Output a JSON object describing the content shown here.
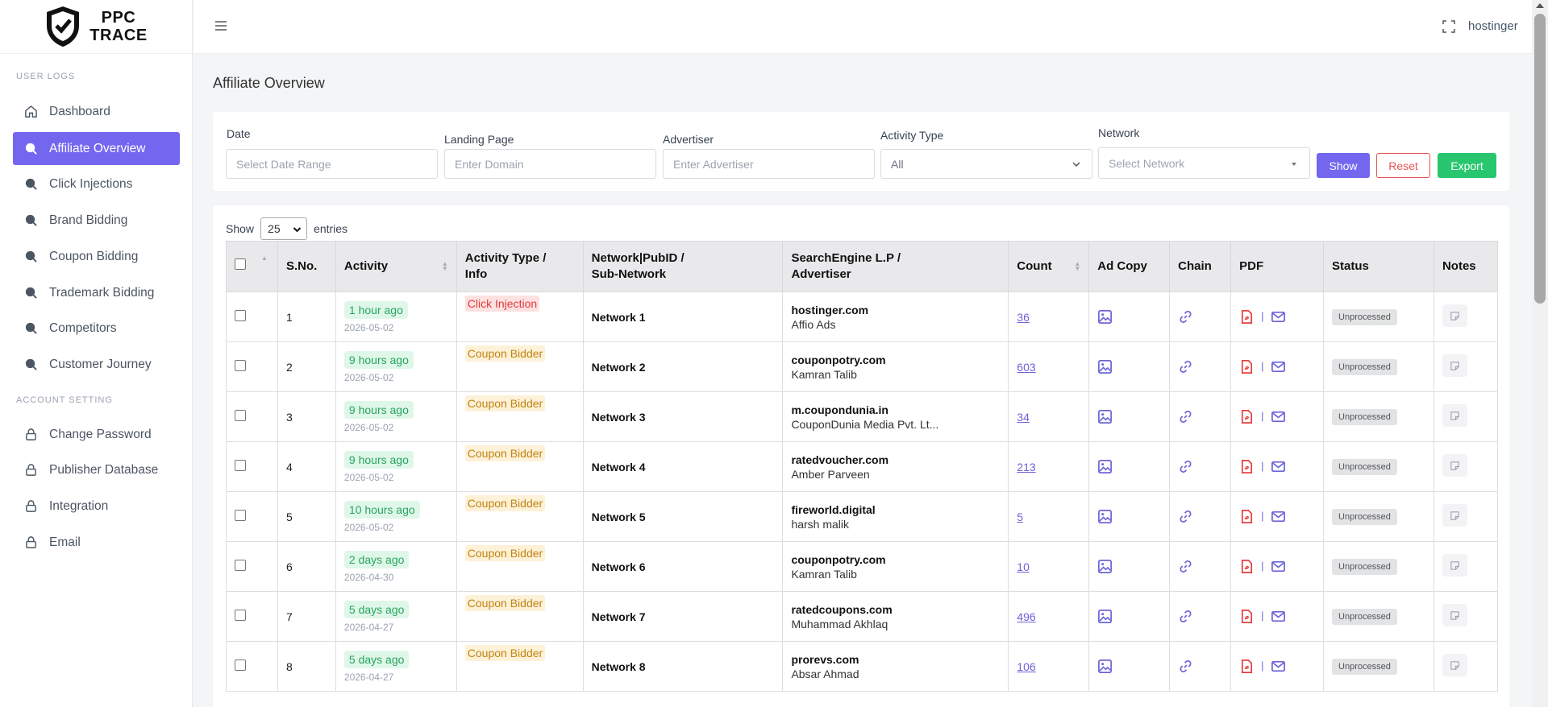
{
  "brand": {
    "line1": "PPC",
    "line2": "TRACE"
  },
  "sidebar": {
    "section_user": "USER LOGS",
    "section_account": "ACCOUNT SETTING",
    "items": [
      {
        "label": "Dashboard",
        "icon": "home-icon"
      },
      {
        "label": "Affiliate Overview",
        "icon": "search-icon"
      },
      {
        "label": "Click Injections",
        "icon": "search-icon"
      },
      {
        "label": "Brand Bidding",
        "icon": "search-icon"
      },
      {
        "label": "Coupon Bidding",
        "icon": "search-icon"
      },
      {
        "label": "Trademark Bidding",
        "icon": "search-icon"
      },
      {
        "label": "Competitors",
        "icon": "search-icon"
      },
      {
        "label": "Customer Journey",
        "icon": "search-icon"
      },
      {
        "label": "Change Password",
        "icon": "lock-icon"
      },
      {
        "label": "Publisher Database",
        "icon": "lock-icon"
      },
      {
        "label": "Integration",
        "icon": "lock-icon"
      },
      {
        "label": "Email",
        "icon": "lock-icon"
      }
    ]
  },
  "topbar": {
    "user": "hostinger"
  },
  "page": {
    "title": "Affiliate Overview"
  },
  "filters": {
    "date_label": "Date",
    "date_placeholder": "Select Date Range",
    "landing_label": "Landing Page",
    "landing_placeholder": "Enter Domain",
    "advertiser_label": "Advertiser",
    "advertiser_placeholder": "Enter Advertiser",
    "activity_label": "Activity Type",
    "activity_value": "All",
    "network_label": "Network",
    "network_placeholder": "Select Network",
    "show": "Show",
    "reset": "Reset",
    "export": "Export"
  },
  "table": {
    "show_label": "Show",
    "entries_value": "25",
    "entries_label": "entries",
    "headers": {
      "sno": "S.No.",
      "activity": "Activity",
      "type_1": "Activity Type /",
      "type_2": "Info",
      "network_1": "Network|PubID /",
      "network_2": "Sub-Network",
      "se_1": "SearchEngine L.P /",
      "se_2": "Advertiser",
      "count": "Count",
      "adcopy": "Ad Copy",
      "chain": "Chain",
      "pdf": "PDF",
      "status": "Status",
      "notes": "Notes"
    },
    "rows": [
      {
        "sno": "1",
        "ago": "1 hour ago",
        "date": "2026-05-02",
        "type": "Click Injection",
        "network": "Network 1",
        "domain": "hostinger.com",
        "advertiser": "Affio Ads",
        "count": "36",
        "status": "Unprocessed"
      },
      {
        "sno": "2",
        "ago": "9 hours ago",
        "date": "2026-05-02",
        "type": "Coupon Bidder",
        "network": "Network 2",
        "domain": "couponpotry.com",
        "advertiser": "Kamran Talib",
        "count": "603",
        "status": "Unprocessed"
      },
      {
        "sno": "3",
        "ago": "9 hours ago",
        "date": "2026-05-02",
        "type": "Coupon Bidder",
        "network": "Network 3",
        "domain": "m.coupondunia.in",
        "advertiser": "CouponDunia Media Pvt. Lt...",
        "count": "34",
        "status": "Unprocessed"
      },
      {
        "sno": "4",
        "ago": "9 hours ago",
        "date": "2026-05-02",
        "type": "Coupon Bidder",
        "network": "Network 4",
        "domain": "ratedvoucher.com",
        "advertiser": "Amber Parveen",
        "count": "213",
        "status": "Unprocessed"
      },
      {
        "sno": "5",
        "ago": "10 hours ago",
        "date": "2026-05-02",
        "type": "Coupon Bidder",
        "network": "Network 5",
        "domain": "fireworld.digital",
        "advertiser": "harsh malik",
        "count": "5",
        "status": "Unprocessed"
      },
      {
        "sno": "6",
        "ago": "2 days ago",
        "date": "2026-04-30",
        "type": "Coupon Bidder",
        "network": "Network 6",
        "domain": "couponpotry.com",
        "advertiser": "Kamran Talib",
        "count": "10",
        "status": "Unprocessed"
      },
      {
        "sno": "7",
        "ago": "5 days ago",
        "date": "2026-04-27",
        "type": "Coupon Bidder",
        "network": "Network 7",
        "domain": "ratedcoupons.com",
        "advertiser": "Muhammad Akhlaq",
        "count": "496",
        "status": "Unprocessed"
      },
      {
        "sno": "8",
        "ago": "5 days ago",
        "date": "2026-04-27",
        "type": "Coupon Bidder",
        "network": "Network 8",
        "domain": "prorevs.com",
        "advertiser": "Absar Ahmad",
        "count": "106",
        "status": "Unprocessed"
      }
    ]
  },
  "colors": {
    "accent": "#7367f0",
    "danger": "#ea5455",
    "success": "#28c76f"
  }
}
